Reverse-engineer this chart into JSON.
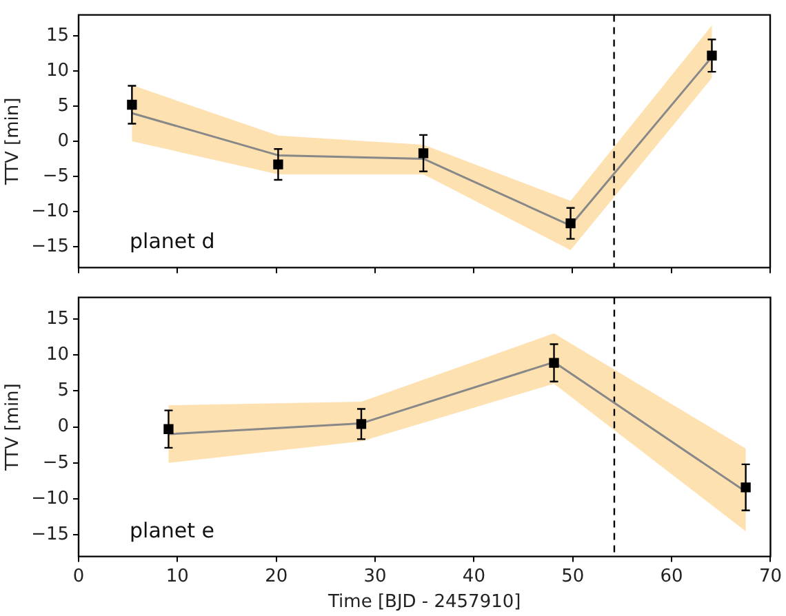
{
  "chart_data": [
    {
      "type": "scatter",
      "ylabel": "TTV [min]",
      "annotations": [
        "planet d"
      ],
      "xlim": [
        0,
        70
      ],
      "xticks": [
        0,
        10,
        20,
        30,
        40,
        50,
        60,
        70
      ],
      "ylim": [
        -18,
        18
      ],
      "yticks": [
        -15,
        -10,
        -5,
        0,
        5,
        10,
        15
      ],
      "tick_labels": "y",
      "grid": false,
      "legend": false,
      "ref_lines": [
        {
          "axis": "x",
          "value": 54.2,
          "color": "#000000",
          "line_style": "dashed"
        }
      ],
      "series": [
        {
          "type": "line",
          "color": "#888888",
          "marker": "none",
          "x": [
            5.4,
            20.2,
            34.9,
            49.8,
            64.1
          ],
          "values": [
            4,
            -2,
            -2.5,
            -12,
            12
          ],
          "lower": [
            0,
            -4.7,
            -4.7,
            -15.5,
            9
          ],
          "upper": [
            8,
            0.8,
            -0.5,
            -8.5,
            16.5
          ]
        },
        {
          "type": "scatter",
          "color": "#000000",
          "marker": "square",
          "x": [
            5.4,
            20.2,
            34.9,
            49.8,
            64.1
          ],
          "values": [
            5.2,
            -3.3,
            -1.7,
            -11.7,
            12.2
          ],
          "errors": [
            2.7,
            2.2,
            2.6,
            2.2,
            2.3
          ]
        }
      ]
    },
    {
      "type": "scatter",
      "ylabel": "TTV [min]",
      "xlabel": "Time [BJD - 2457910]",
      "annotations": [
        "planet e"
      ],
      "xlim": [
        0,
        70
      ],
      "xticks": [
        0,
        10,
        20,
        30,
        40,
        50,
        60,
        70
      ],
      "ylim": [
        -18,
        18
      ],
      "yticks": [
        -15,
        -10,
        -5,
        0,
        5,
        10,
        15
      ],
      "grid": false,
      "legend": false,
      "ref_lines": [
        {
          "axis": "x",
          "value": 54.2,
          "color": "#000000",
          "line_style": "dashed"
        }
      ],
      "series": [
        {
          "type": "line",
          "color": "#888888",
          "marker": "none",
          "x": [
            9.1,
            28.6,
            48.1,
            67.5
          ],
          "values": [
            -1,
            0.5,
            9,
            -9
          ],
          "lower": [
            -5,
            -2,
            6,
            -14.5
          ],
          "upper": [
            3,
            3.5,
            13,
            -3
          ]
        },
        {
          "type": "scatter",
          "color": "#000000",
          "marker": "square",
          "x": [
            9.1,
            28.6,
            48.1,
            67.5
          ],
          "values": [
            -0.3,
            0.4,
            8.9,
            -8.4
          ],
          "errors": [
            2.6,
            2.1,
            2.6,
            3.2
          ]
        }
      ]
    }
  ]
}
